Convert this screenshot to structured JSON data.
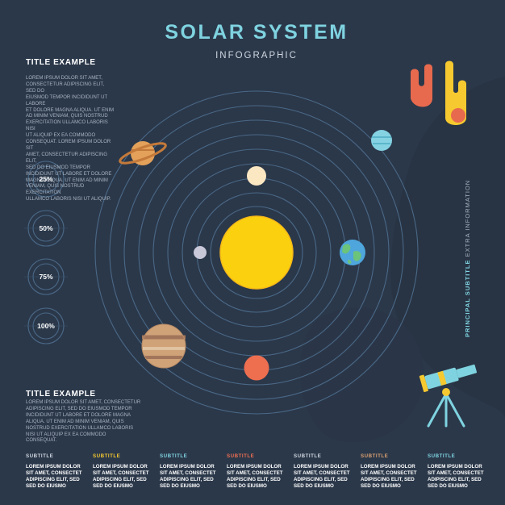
{
  "title": "SOLAR SYSTEM",
  "subtitle": "INFOGRAPHIC",
  "top_block": {
    "title": "TITLE EXAMPLE",
    "body_lines": [
      "LOREM IPSUM DOLOR SIT AMET,",
      "CONSECTETUR ADIPISCING ELIT, SED DO",
      "EIUSMOD TEMPOR INCIDIDUNT UT LABORE",
      "ET DOLORE MAGNA ALIQUA. UT ENIM",
      "AD MINIM VENIAM, QUIS NOSTRUD",
      "EXERCITATION ULLAMCO LABORIS NISI",
      "UT ALIQUIP EX EA COMMODO",
      "CONSEQUAT. LOREM IPSUM DOLOR SIT",
      "AMET, CONSECTETUR ADIPISCING ELIT,",
      "SED DO EIUSMOD TEMPOR",
      "INCIDIDUNT UT LABORE ET DOLORE",
      "MAGNA ALIQUA. UT ENIM AD MINIM",
      "VENIAM, QUIS NOSTRUD EXERCITATION",
      "ULLAMCO LABORIS NISI UT ALIQUIP."
    ]
  },
  "progress_items": [
    {
      "label": "25%",
      "value": 0.25
    },
    {
      "label": "50%",
      "value": 0.5
    },
    {
      "label": "75%",
      "value": 0.75
    },
    {
      "label": "100%",
      "value": 1.0
    }
  ],
  "bottom_block": {
    "title": "TITLE EXAMPLE",
    "body_lines": [
      "LOREM IPSUM DOLOR SIT AMET, CONSECTETUR",
      "ADIPISCING ELIT, SED DO EIUSMOD TEMPOR",
      "INCIDIDUNT UT LABORE ET DOLORE MAGNA",
      "ALIQUA. UT ENIM AD MINIM VENIAM, QUIS",
      "NOSTRUD EXERCITATION ULLAMCO LABORIS",
      "NISI UT ALIQUIP EX EA COMMODO",
      "CONSEQUAT."
    ]
  },
  "side_text": {
    "bold": "PRINCIPAL SUBTITLE",
    "light": "EXTRA INFORMATION"
  },
  "columns": [
    {
      "title": "SUBTITLE",
      "color": "#cfd6de",
      "lines": [
        "LOREM IPSUM DOLOR",
        "SIT AMET, CONSECTET",
        "ADIPISCING ELIT, SED",
        "SED DO EIUSMO"
      ]
    },
    {
      "title": "SUBTITLE",
      "color": "#f5c92f",
      "lines": [
        "LOREM IPSUM DOLOR",
        "SIT AMET, CONSECTET",
        "ADIPISCING ELIT, SED",
        "SED DO EIUSMO"
      ]
    },
    {
      "title": "SUBTITLE",
      "color": "#7fd3e0",
      "lines": [
        "LOREM IPSUM DOLOR",
        "SIT AMET, CONSECTET",
        "ADIPISCING ELIT, SED",
        "SED DO EIUSMO"
      ]
    },
    {
      "title": "SUBTITLE",
      "color": "#ee6e50",
      "lines": [
        "LOREM IPSUM DOLOR",
        "SIT AMET, CONSECTET",
        "ADIPISCING ELIT, SED",
        "SED DO EIUSMO"
      ]
    },
    {
      "title": "SUBTITLE",
      "color": "#cfd6de",
      "lines": [
        "LOREM IPSUM DOLOR",
        "SIT AMET, CONSECTET",
        "ADIPISCING ELIT, SED",
        "SED DO EIUSMO"
      ]
    },
    {
      "title": "SUBTITLE",
      "color": "#d9a070",
      "lines": [
        "LOREM IPSUM DOLOR",
        "SIT AMET, CONSECTET",
        "ADIPISCING ELIT, SED",
        "SED DO EIUSMO"
      ]
    },
    {
      "title": "SUBTITLE",
      "color": "#7fd3e0",
      "lines": [
        "LOREM IPSUM DOLOR",
        "SIT AMET, CONSECTET",
        "ADIPISCING ELIT, SED",
        "SED DO EIUSMO"
      ]
    }
  ],
  "colors": {
    "background": "#283444",
    "orbit": "#4a6886",
    "accent_cyan": "#7fd3e0",
    "sun": "#fbd10f",
    "mars": "#ee6e50"
  },
  "illustrations": {
    "sun": "sun",
    "planets": [
      "mercury-venus",
      "earth",
      "mars",
      "jupiter",
      "saturn",
      "uranus",
      "small-planet"
    ],
    "extras": [
      "meteor-orange",
      "meteor-yellow",
      "telescope"
    ]
  }
}
